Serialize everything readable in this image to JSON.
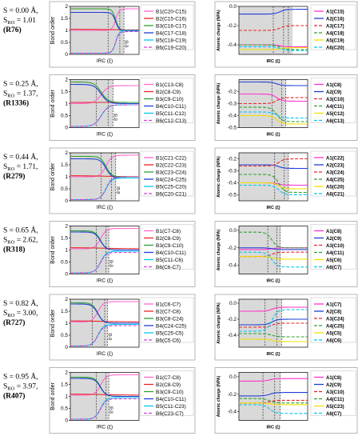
{
  "chart_data": [
    {
      "row_label": {
        "s": "S = 0.00 Å,",
        "sro": "S",
        "sro_sub": "RO",
        "sro_val": " = 1.01",
        "id": "(R76)"
      },
      "bond": {
        "type": "line",
        "ylabel": "Bond order",
        "xlabel": "IRC (ξ)",
        "ylim": [
          0,
          2
        ],
        "yticks": [
          0,
          0.5,
          1.0,
          1.5,
          2.0
        ],
        "shade": [
          0.0,
          0.78
        ],
        "vlines": [
          0.55,
          0.72,
          0.78
        ],
        "annotations": [
          "ξβ",
          "ξα"
        ],
        "legend": [
          "B1(C20-C15)",
          "B2(C15-C16)",
          "B3(C16-C17)",
          "B4(C17-C18)",
          "B5(C18-C19)",
          "B6(C19-C20)"
        ],
        "series": [
          {
            "start": 1.0,
            "end": 1.9,
            "mid": 0.66,
            "w": 0.025
          },
          {
            "start": 1.05,
            "end": 1.02,
            "mid": 0.5,
            "w": 0.2
          },
          {
            "start": 1.9,
            "end": 1.0,
            "mid": 0.66,
            "w": 0.025
          },
          {
            "start": 1.75,
            "end": 0.98,
            "mid": 0.66,
            "w": 0.025
          },
          {
            "start": 0.05,
            "end": 1.0,
            "mid": 0.66,
            "w": 0.025
          },
          {
            "start": 0.05,
            "end": 0.95,
            "mid": 0.66,
            "w": 0.025
          }
        ]
      },
      "charge": {
        "type": "line",
        "ylabel": "Atomic charge (NPA)",
        "xlabel": "IRC (ξ)",
        "ylim": [
          -0.5,
          0.0
        ],
        "yticks": [
          0.0,
          -0.2,
          -0.4
        ],
        "shade": [
          0.0,
          0.78
        ],
        "vlines": [
          0.5,
          0.65,
          0.72
        ],
        "legend": [
          "A1(C15)",
          "A2(C16)",
          "A3(C17)",
          "A4(C18)",
          "A5(C19)",
          "A6(C20)"
        ],
        "series": [
          {
            "start": -0.4,
            "end": -0.42,
            "mid": 0.6,
            "w": 0.04
          },
          {
            "start": -0.08,
            "end": -0.03,
            "mid": 0.6,
            "w": 0.04
          },
          {
            "start": -0.25,
            "end": -0.2,
            "mid": 0.6,
            "w": 0.04
          },
          {
            "start": -0.4,
            "end": -0.45,
            "mid": 0.6,
            "w": 0.04
          },
          {
            "start": -0.45,
            "end": -0.43,
            "mid": 0.6,
            "w": 0.04
          },
          {
            "start": -0.42,
            "end": -0.46,
            "mid": 0.6,
            "w": 0.04
          }
        ]
      }
    },
    {
      "row_label": {
        "s": "S = 0.25 Å,",
        "sro": "S",
        "sro_sub": "RO",
        "sro_val": " = 1.37,",
        "id": "(R1336)"
      },
      "bond": {
        "type": "line",
        "ylabel": "Bond order",
        "xlabel": "IRC (ξ)",
        "ylim": [
          0,
          2
        ],
        "yticks": [
          0,
          0.5,
          1.0,
          1.5,
          2.0
        ],
        "shade": [
          0.0,
          0.62
        ],
        "vlines": [
          0.38,
          0.55,
          0.62
        ],
        "annotations": [
          "ξβ",
          "ξα"
        ],
        "legend": [
          "B1(C13-C8)",
          "B2(C8-C9)",
          "B3(C9-C10)",
          "B4(C10-C11)",
          "B5(C11-C12)",
          "B6(C12-C13)"
        ],
        "series": [
          {
            "start": 1.0,
            "end": 1.75,
            "mid": 0.45,
            "w": 0.05
          },
          {
            "start": 1.05,
            "end": 1.05,
            "mid": 0.5,
            "w": 0.2
          },
          {
            "start": 1.9,
            "end": 1.05,
            "mid": 0.45,
            "w": 0.05
          },
          {
            "start": 1.8,
            "end": 1.0,
            "mid": 0.45,
            "w": 0.05
          },
          {
            "start": 0.05,
            "end": 0.95,
            "mid": 0.45,
            "w": 0.05
          },
          {
            "start": 0.05,
            "end": 0.95,
            "mid": 0.45,
            "w": 0.05
          }
        ]
      },
      "charge": {
        "type": "line",
        "ylabel": "Atomic charge (NPA)",
        "xlabel": "IRC (ξ)",
        "ylim": [
          -0.5,
          -0.1
        ],
        "yticks": [
          -0.2,
          -0.3,
          -0.4,
          -0.5
        ],
        "shade": [
          0.0,
          0.68
        ],
        "vlines": [
          0.48,
          0.62,
          0.68
        ],
        "legend": [
          "A1(C8)",
          "A2(C9)",
          "A3(C10)",
          "A4(C11)",
          "A5(C12)",
          "A6(C13)"
        ],
        "series": [
          {
            "start": -0.22,
            "end": -0.28,
            "mid": 0.55,
            "w": 0.04
          },
          {
            "start": -0.12,
            "end": -0.15,
            "mid": 0.55,
            "w": 0.04
          },
          {
            "start": -0.3,
            "end": -0.25,
            "mid": 0.55,
            "w": 0.04
          },
          {
            "start": -0.33,
            "end": -0.45,
            "mid": 0.55,
            "w": 0.04
          },
          {
            "start": -0.4,
            "end": -0.47,
            "mid": 0.55,
            "w": 0.04
          },
          {
            "start": -0.37,
            "end": -0.42,
            "mid": 0.55,
            "w": 0.04
          }
        ]
      }
    },
    {
      "row_label": {
        "s": "S = 0.44 Å,",
        "sro": "S",
        "sro_sub": "RO",
        "sro_val": " = 1.71,",
        "id": "(R279)"
      },
      "bond": {
        "type": "line",
        "ylabel": "Bond order",
        "xlabel": "IRC (ξ)",
        "ylim": [
          0,
          2
        ],
        "yticks": [
          0,
          0.5,
          1.0,
          1.5,
          2.0
        ],
        "shade": [
          0.0,
          0.66
        ],
        "vlines": [
          0.45,
          0.6,
          0.66
        ],
        "annotations": [
          "ξβ",
          "ξα"
        ],
        "legend": [
          "B1(C21-C22)",
          "B2(C22-C23)",
          "B3(C23-C24)",
          "B4(C24-C25)",
          "B5(C25-C20)",
          "B6(C20-C21)"
        ],
        "series": [
          {
            "start": 1.0,
            "end": 1.9,
            "mid": 0.52,
            "w": 0.04
          },
          {
            "start": 1.05,
            "end": 1.0,
            "mid": 0.5,
            "w": 0.2
          },
          {
            "start": 1.85,
            "end": 1.0,
            "mid": 0.52,
            "w": 0.04
          },
          {
            "start": 1.75,
            "end": 0.95,
            "mid": 0.52,
            "w": 0.04
          },
          {
            "start": 0.05,
            "end": 0.95,
            "mid": 0.52,
            "w": 0.04
          },
          {
            "start": 0.05,
            "end": 1.0,
            "mid": 0.52,
            "w": 0.04
          }
        ]
      },
      "charge": {
        "type": "line",
        "ylabel": "Atomic charge (NPA)",
        "xlabel": "IRC (ξ)",
        "ylim": [
          -0.55,
          -0.15
        ],
        "yticks": [
          -0.2,
          -0.3,
          -0.4,
          -0.5
        ],
        "shade": [
          0.0,
          0.72
        ],
        "vlines": [
          0.52,
          0.66,
          0.72
        ],
        "legend": [
          "A1(C22)",
          "A2(C23)",
          "A3(C24)",
          "A4(C25)",
          "A5(C20)",
          "A6(C21)"
        ],
        "series": [
          {
            "start": -0.4,
            "end": -0.42,
            "mid": 0.58,
            "w": 0.04
          },
          {
            "start": -0.25,
            "end": -0.28,
            "mid": 0.58,
            "w": 0.04
          },
          {
            "start": -0.26,
            "end": -0.2,
            "mid": 0.58,
            "w": 0.04
          },
          {
            "start": -0.33,
            "end": -0.48,
            "mid": 0.58,
            "w": 0.04
          },
          {
            "start": -0.4,
            "end": -0.45,
            "mid": 0.58,
            "w": 0.04
          },
          {
            "start": -0.42,
            "end": -0.5,
            "mid": 0.58,
            "w": 0.04
          }
        ]
      }
    },
    {
      "row_label": {
        "s": "S = 0.65 Å,",
        "sro": "S",
        "sro_sub": "RO",
        "sro_val": " = 2.62,",
        "id": "(R318)"
      },
      "bond": {
        "type": "line",
        "ylabel": "Bond order",
        "xlabel": "IRC (ξ)",
        "ylim": [
          0,
          2
        ],
        "yticks": [
          0,
          0.5,
          1.0,
          1.5,
          2.0
        ],
        "shade": [
          0.0,
          0.56
        ],
        "vlines": [
          0.38,
          0.52,
          0.56
        ],
        "annotations": [
          "ξβ",
          "ξα"
        ],
        "legend": [
          "B1(C7-C8)",
          "B2(C8-C9)",
          "B3(C9-C10)",
          "B4(C10-C11)",
          "B5(C11-C6)",
          "B6(C6-C7)"
        ],
        "series": [
          {
            "start": 1.05,
            "end": 1.9,
            "mid": 0.44,
            "w": 0.04
          },
          {
            "start": 1.1,
            "end": 1.05,
            "mid": 0.5,
            "w": 0.2
          },
          {
            "start": 1.8,
            "end": 1.0,
            "mid": 0.44,
            "w": 0.04
          },
          {
            "start": 1.75,
            "end": 1.0,
            "mid": 0.44,
            "w": 0.04
          },
          {
            "start": 0.05,
            "end": 0.95,
            "mid": 0.44,
            "w": 0.04
          },
          {
            "start": 0.05,
            "end": 0.9,
            "mid": 0.44,
            "w": 0.04
          }
        ]
      },
      "charge": {
        "type": "line",
        "ylabel": "Atomic charge (NPA)",
        "xlabel": "IRC (ξ)",
        "ylim": [
          -0.5,
          0.05
        ],
        "yticks": [
          0.0,
          -0.2,
          -0.4
        ],
        "shade": [
          0.0,
          0.6
        ],
        "vlines": [
          0.42,
          0.55,
          0.6
        ],
        "legend": [
          "A1(C8)",
          "A2(C9)",
          "A3(C10)",
          "A4(C11)",
          "A5(C6)",
          "A6(C7)"
        ],
        "series": [
          {
            "start": -0.22,
            "end": -0.2,
            "mid": 0.48,
            "w": 0.04
          },
          {
            "start": -0.2,
            "end": -0.22,
            "mid": 0.48,
            "w": 0.04
          },
          {
            "start": -0.3,
            "end": -0.25,
            "mid": 0.48,
            "w": 0.04
          },
          {
            "start": -0.02,
            "end": -0.2,
            "mid": 0.48,
            "w": 0.04
          },
          {
            "start": -0.3,
            "end": -0.33,
            "mid": 0.48,
            "w": 0.04
          },
          {
            "start": -0.25,
            "end": -0.42,
            "mid": 0.48,
            "w": 0.04
          }
        ]
      }
    },
    {
      "row_label": {
        "s": "S = 0.82 Å,",
        "sro": "S",
        "sro_sub": "RO",
        "sro_val": " = 3.00,",
        "id": "(R727)"
      },
      "bond": {
        "type": "line",
        "ylabel": "Bond order",
        "xlabel": "IRC (ξ)",
        "ylim": [
          0,
          2
        ],
        "yticks": [
          0,
          0.5,
          1.0,
          1.5,
          2.0
        ],
        "shade": [
          0.0,
          0.54
        ],
        "vlines": [
          0.32,
          0.5,
          0.54
        ],
        "annotations": [
          "ξβ",
          "ξα"
        ],
        "legend": [
          "B1(C6-C7)",
          "B2(C7-C8)",
          "B3(C8-C24)",
          "B4(C24-C25)",
          "B5(C25-C5)",
          "B6(C5-C6)"
        ],
        "series": [
          {
            "start": 1.05,
            "end": 1.9,
            "mid": 0.4,
            "w": 0.04
          },
          {
            "start": 1.1,
            "end": 1.05,
            "mid": 0.5,
            "w": 0.2
          },
          {
            "start": 1.85,
            "end": 1.0,
            "mid": 0.4,
            "w": 0.04
          },
          {
            "start": 1.8,
            "end": 1.0,
            "mid": 0.4,
            "w": 0.04
          },
          {
            "start": 0.05,
            "end": 0.95,
            "mid": 0.4,
            "w": 0.04
          },
          {
            "start": 0.05,
            "end": 0.9,
            "mid": 0.4,
            "w": 0.04
          }
        ]
      },
      "charge": {
        "type": "line",
        "ylabel": "Atomic charge (NPA)",
        "xlabel": "IRC (ξ)",
        "ylim": [
          -0.55,
          0.05
        ],
        "yticks": [
          0.0,
          -0.2,
          -0.4
        ],
        "shade": [
          0.0,
          0.62
        ],
        "vlines": [
          0.38,
          0.55,
          0.62
        ],
        "legend": [
          "A1(C7)",
          "A2(C8)",
          "A3(C24)",
          "A4(C25)",
          "A5(C5)",
          "A6(C6)"
        ],
        "series": [
          {
            "start": -0.1,
            "end": -0.05,
            "mid": 0.48,
            "w": 0.04
          },
          {
            "start": -0.27,
            "end": -0.2,
            "mid": 0.48,
            "w": 0.04
          },
          {
            "start": -0.3,
            "end": -0.25,
            "mid": 0.48,
            "w": 0.04
          },
          {
            "start": -0.38,
            "end": -0.42,
            "mid": 0.48,
            "w": 0.04
          },
          {
            "start": -0.45,
            "end": -0.48,
            "mid": 0.48,
            "w": 0.04
          },
          {
            "start": -0.35,
            "end": -0.08,
            "mid": 0.48,
            "w": 0.04
          }
        ]
      }
    },
    {
      "row_label": {
        "s": "S = 0.95 Å,",
        "sro": "S",
        "sro_sub": "RO",
        "sro_val": " = 3.97,",
        "id": "(R407)"
      },
      "bond": {
        "type": "line",
        "ylabel": "Bond order",
        "xlabel": "IRC (ξ)",
        "ylim": [
          0,
          2
        ],
        "yticks": [
          0,
          0.5,
          1.0,
          1.5,
          2.0
        ],
        "shade": [
          0.0,
          0.56
        ],
        "vlines": [
          0.38,
          0.52,
          0.56
        ],
        "annotations": [
          "ξβ",
          "ξα"
        ],
        "legend": [
          "B1(C7-C8)",
          "B2(C8-C9)",
          "B3(C9-C10)",
          "B4(C10-C11)",
          "B5(C11-C23)",
          "B6(C23-C7)"
        ],
        "series": [
          {
            "start": 1.05,
            "end": 1.9,
            "mid": 0.44,
            "w": 0.04
          },
          {
            "start": 1.1,
            "end": 1.05,
            "mid": 0.5,
            "w": 0.2
          },
          {
            "start": 1.8,
            "end": 1.0,
            "mid": 0.44,
            "w": 0.04
          },
          {
            "start": 1.75,
            "end": 1.0,
            "mid": 0.44,
            "w": 0.04
          },
          {
            "start": 0.05,
            "end": 0.95,
            "mid": 0.44,
            "w": 0.04
          },
          {
            "start": 0.05,
            "end": 0.9,
            "mid": 0.44,
            "w": 0.04
          }
        ]
      },
      "charge": {
        "type": "line",
        "ylabel": "Atomic charge (NPA)",
        "xlabel": "IRC (ξ)",
        "ylim": [
          -0.5,
          0.05
        ],
        "yticks": [
          0.0,
          -0.2,
          -0.4
        ],
        "shade": [
          0.0,
          0.6
        ],
        "vlines": [
          0.35,
          0.52,
          0.6
        ],
        "legend": [
          "A1(C8)",
          "A2(C9)",
          "A3(C10)",
          "A4(C11)",
          "A5(C23)",
          "A6(C7)"
        ],
        "series": [
          {
            "start": -0.05,
            "end": -0.02,
            "mid": 0.45,
            "w": 0.04
          },
          {
            "start": -0.22,
            "end": -0.18,
            "mid": 0.45,
            "w": 0.04
          },
          {
            "start": -0.3,
            "end": -0.27,
            "mid": 0.45,
            "w": 0.04
          },
          {
            "start": -0.25,
            "end": -0.3,
            "mid": 0.45,
            "w": 0.04
          },
          {
            "start": -0.3,
            "end": -0.32,
            "mid": 0.45,
            "w": 0.04
          },
          {
            "start": -0.32,
            "end": -0.42,
            "mid": 0.45,
            "w": 0.04
          }
        ]
      }
    }
  ],
  "series_styles": {
    "bond": [
      {
        "color": "#ff66cc",
        "dash": ""
      },
      {
        "color": "#e8262a",
        "dash": ""
      },
      {
        "color": "#2ca02c",
        "dash": ""
      },
      {
        "color": "#1f3fd6",
        "dash": ""
      },
      {
        "color": "#00c8f0",
        "dash": ""
      },
      {
        "color": "#d43fd4",
        "dash": "4,2"
      }
    ],
    "charge": [
      {
        "color": "#ff33cc",
        "dash": ""
      },
      {
        "color": "#1f3fd6",
        "dash": ""
      },
      {
        "color": "#e8262a",
        "dash": "4,2"
      },
      {
        "color": "#2ca02c",
        "dash": "4,2"
      },
      {
        "color": "#f0e000",
        "dash": ""
      },
      {
        "color": "#00c8f0",
        "dash": "4,2"
      }
    ]
  },
  "colors": {
    "shade": "#d9d9d9",
    "axis": "#000000",
    "vline": "#333333"
  }
}
